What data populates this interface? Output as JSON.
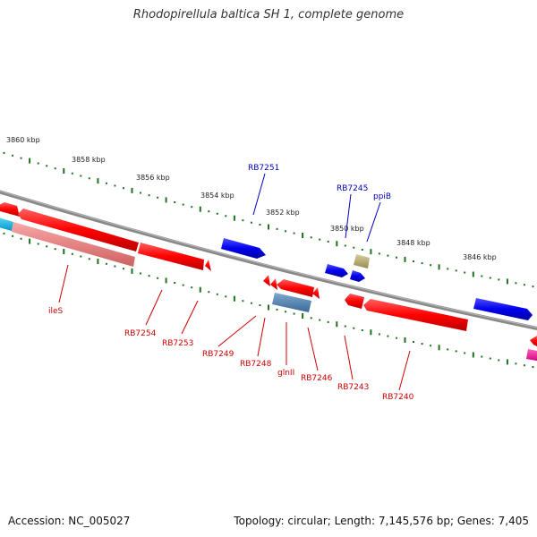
{
  "title": "Rhodopirellula baltica SH 1, complete genome",
  "footer": {
    "accession": "Accession: NC_005027",
    "summary": "Topology: circular; Length: 7,145,576 bp; Genes: 7,405"
  },
  "colors": {
    "backbone": "#808080",
    "tick": "#207020",
    "forward_label": "#0000bb",
    "reverse_label": "#cc0000",
    "kbp_label": "#222222"
  },
  "kbp_ticks": [
    "3860 kbp",
    "3858 kbp",
    "3856 kbp",
    "3854 kbp",
    "3852 kbp",
    "3850 kbp",
    "3848 kbp",
    "3846 kbp"
  ],
  "gene_labels": {
    "forward": [
      "RB7251",
      "RB7245",
      "ppiB"
    ],
    "reverse": [
      "ileS",
      "RB7254",
      "RB7253",
      "RB7249",
      "RB7248",
      "glnII",
      "RB7246",
      "RB7243",
      "RB7240"
    ]
  }
}
